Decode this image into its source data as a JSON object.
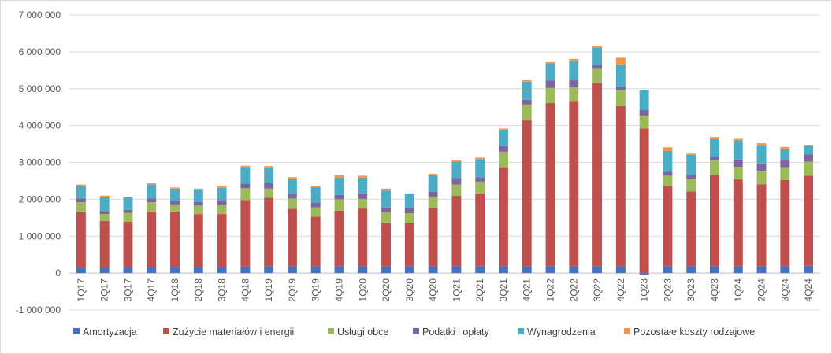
{
  "chart_data": {
    "type": "bar",
    "stacked": true,
    "title": "",
    "xlabel": "",
    "ylabel": "",
    "ylim": [
      -1000000,
      7000000
    ],
    "y_ticks": [
      -1000000,
      0,
      1000000,
      2000000,
      3000000,
      4000000,
      5000000,
      6000000,
      7000000
    ],
    "y_tick_labels": [
      "-1 000 000",
      "0",
      "1 000 000",
      "2 000 000",
      "3 000 000",
      "4 000 000",
      "5 000 000",
      "6 000 000",
      "7 000 000"
    ],
    "grid": true,
    "legend_position": "bottom",
    "categories": [
      "1Q17",
      "2Q17",
      "3Q17",
      "4Q17",
      "1Q18",
      "2Q18",
      "3Q18",
      "4Q18",
      "1Q19",
      "2Q19",
      "3Q19",
      "4Q19",
      "1Q20",
      "2Q20",
      "3Q20",
      "4Q20",
      "1Q21",
      "2Q21",
      "3Q21",
      "4Q21",
      "1Q22",
      "2Q22",
      "3Q22",
      "4Q22",
      "1Q23",
      "2Q23",
      "3Q23",
      "4Q23",
      "1Q24",
      "2Q24",
      "3Q24",
      "4Q24"
    ],
    "series": [
      {
        "name": "Amortyzacja",
        "color": "#4472c4",
        "values": [
          150000,
          150000,
          160000,
          170000,
          170000,
          170000,
          170000,
          180000,
          190000,
          190000,
          190000,
          190000,
          190000,
          190000,
          190000,
          190000,
          190000,
          190000,
          190000,
          190000,
          190000,
          190000,
          190000,
          190000,
          -50000,
          190000,
          190000,
          190000,
          190000,
          190000,
          190000,
          200000
        ]
      },
      {
        "name": "Zużycie materiałów i energii",
        "color": "#c0504d",
        "values": [
          1500000,
          1260000,
          1230000,
          1500000,
          1500000,
          1430000,
          1430000,
          1800000,
          1850000,
          1550000,
          1340000,
          1500000,
          1560000,
          1180000,
          1160000,
          1570000,
          1910000,
          1970000,
          2680000,
          3950000,
          4420000,
          4460000,
          4970000,
          4340000,
          3920000,
          2170000,
          2020000,
          2470000,
          2350000,
          2220000,
          2330000,
          2440000
        ]
      },
      {
        "name": "Usługi obce",
        "color": "#9bbb59",
        "values": [
          270000,
          190000,
          240000,
          250000,
          190000,
          230000,
          250000,
          320000,
          250000,
          280000,
          250000,
          310000,
          260000,
          280000,
          270000,
          310000,
          300000,
          320000,
          420000,
          430000,
          410000,
          390000,
          380000,
          430000,
          350000,
          280000,
          350000,
          390000,
          340000,
          360000,
          350000,
          380000
        ]
      },
      {
        "name": "Podatki i opłaty",
        "color": "#8064a2",
        "values": [
          100000,
          80000,
          80000,
          100000,
          100000,
          100000,
          130000,
          130000,
          150000,
          130000,
          130000,
          120000,
          150000,
          130000,
          140000,
          130000,
          180000,
          120000,
          160000,
          130000,
          200000,
          190000,
          100000,
          100000,
          150000,
          110000,
          110000,
          100000,
          200000,
          200000,
          200000,
          200000
        ]
      },
      {
        "name": "Wynagrodzenia",
        "color": "#4bacc6",
        "values": [
          330000,
          380000,
          350000,
          380000,
          330000,
          330000,
          330000,
          440000,
          410000,
          410000,
          420000,
          470000,
          430000,
          460000,
          380000,
          460000,
          440000,
          490000,
          440000,
          490000,
          470000,
          540000,
          480000,
          600000,
          540000,
          560000,
          540000,
          480000,
          520000,
          490000,
          300000,
          220000
        ]
      },
      {
        "name": "Pozostałe koszty rodzajowe",
        "color": "#f79646",
        "values": [
          50000,
          40000,
          10000,
          50000,
          30000,
          30000,
          40000,
          40000,
          50000,
          40000,
          40000,
          60000,
          50000,
          50000,
          20000,
          30000,
          40000,
          40000,
          30000,
          40000,
          30000,
          40000,
          40000,
          180000,
          0,
          100000,
          30000,
          60000,
          40000,
          60000,
          50000,
          40000
        ]
      }
    ]
  }
}
